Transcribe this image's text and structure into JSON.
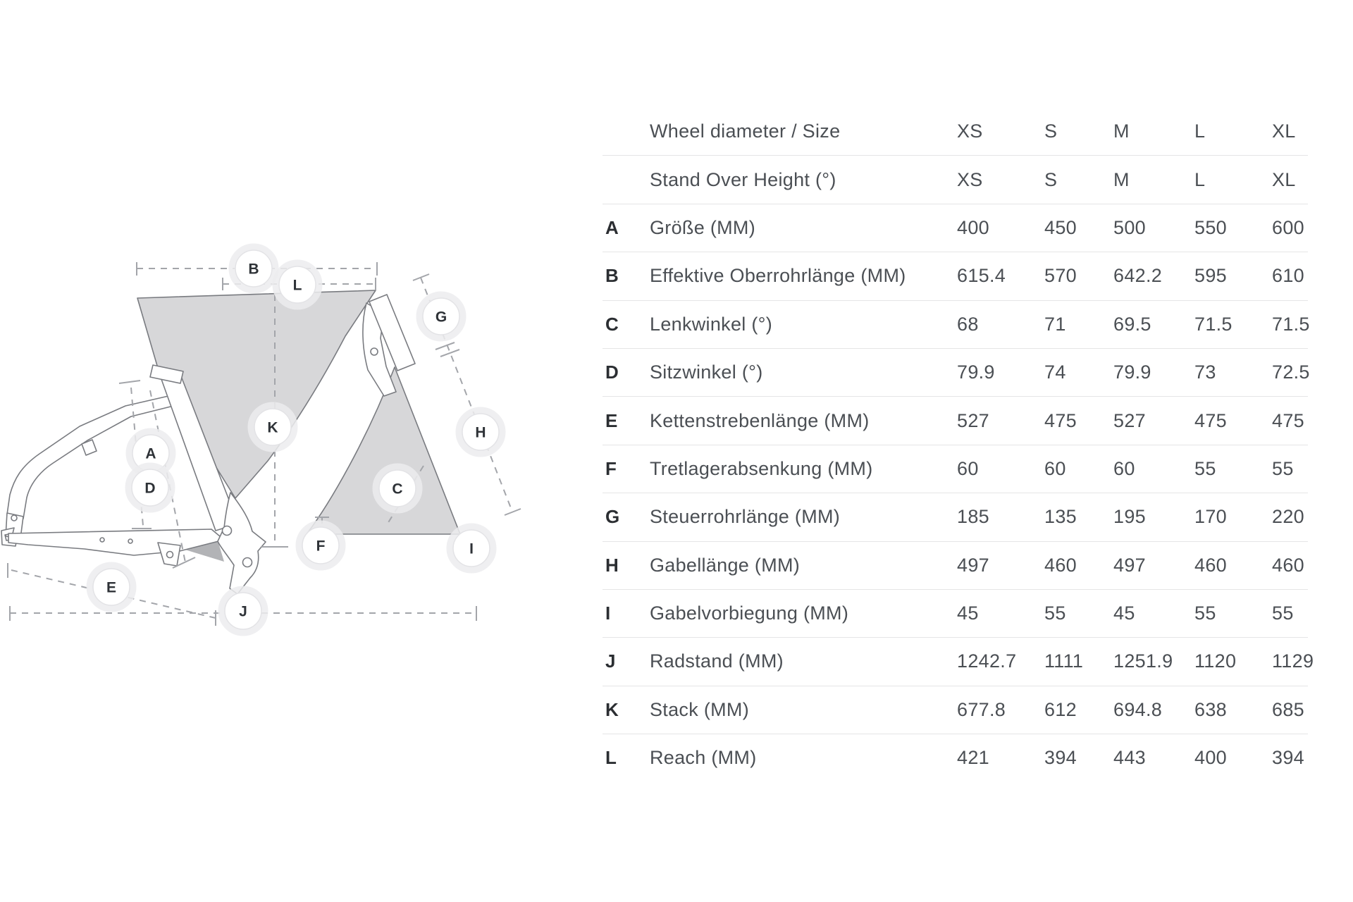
{
  "diagram": {
    "badges": [
      "B",
      "L",
      "G",
      "K",
      "A",
      "D",
      "C",
      "H",
      "F",
      "I",
      "E",
      "J"
    ],
    "colors": {
      "panel_fill": "#d7d7d9",
      "shadow_fill": "#b2b3b6",
      "frame_stroke": "#797b80",
      "dashed_line": "#a3a5aa",
      "badge_fill": "#ffffff",
      "badge_ring": "#e3e3e6",
      "badge_text": "#2e3237"
    }
  },
  "table": {
    "size_header": {
      "label": "Wheel diameter / Size",
      "sizes": [
        "XS",
        "S",
        "M",
        "L",
        "XL"
      ]
    },
    "standover": {
      "label": "Stand Over Height (°)",
      "values": [
        "XS",
        "S",
        "M",
        "L",
        "XL"
      ]
    },
    "rows": [
      {
        "key": "A",
        "label": "Größe (MM)",
        "values": [
          "400",
          "450",
          "500",
          "550",
          "600"
        ]
      },
      {
        "key": "B",
        "label": "Effektive Oberrohrlänge (MM)",
        "values": [
          "615.4",
          "570",
          "642.2",
          "595",
          "610"
        ]
      },
      {
        "key": "C",
        "label": "Lenkwinkel (°)",
        "values": [
          "68",
          "71",
          "69.5",
          "71.5",
          "71.5"
        ]
      },
      {
        "key": "D",
        "label": "Sitzwinkel (°)",
        "values": [
          "79.9",
          "74",
          "79.9",
          "73",
          "72.5"
        ]
      },
      {
        "key": "E",
        "label": "Kettenstrebenlänge (MM)",
        "values": [
          "527",
          "475",
          "527",
          "475",
          "475"
        ]
      },
      {
        "key": "F",
        "label": "Tretlagerabsenkung (MM)",
        "values": [
          "60",
          "60",
          "60",
          "55",
          "55"
        ]
      },
      {
        "key": "G",
        "label": "Steuerrohrlänge (MM)",
        "values": [
          "185",
          "135",
          "195",
          "170",
          "220"
        ]
      },
      {
        "key": "H",
        "label": "Gabellänge (MM)",
        "values": [
          "497",
          "460",
          "497",
          "460",
          "460"
        ]
      },
      {
        "key": "I",
        "label": "Gabelvorbiegung (MM)",
        "values": [
          "45",
          "55",
          "45",
          "55",
          "55"
        ]
      },
      {
        "key": "J",
        "label": "Radstand (MM)",
        "values": [
          "1242.7",
          "1111",
          "1251.9",
          "1120",
          "1129"
        ]
      },
      {
        "key": "K",
        "label": "Stack (MM)",
        "values": [
          "677.8",
          "612",
          "694.8",
          "638",
          "685"
        ]
      },
      {
        "key": "L",
        "label": "Reach (MM)",
        "values": [
          "421",
          "394",
          "443",
          "400",
          "394"
        ]
      }
    ],
    "colors": {
      "row_line": "#e5e5e6",
      "letter_text": "#2b2e32",
      "body_text": "#4b4f54"
    }
  }
}
